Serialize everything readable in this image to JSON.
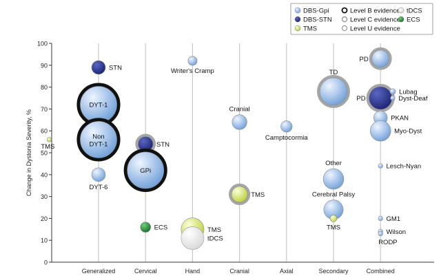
{
  "chart_data": {
    "type": "scatter",
    "ylabel": "Change in Dystonia Severity, %",
    "xlabel": "",
    "ylim": [
      0,
      100
    ],
    "yticks": [
      0,
      10,
      20,
      30,
      40,
      50,
      60,
      70,
      80,
      90,
      100
    ],
    "categories": [
      "Generalized",
      "Cervical",
      "Hand",
      "Cranial",
      "Axial",
      "Secondary",
      "Combined"
    ],
    "legend": {
      "placement": "top-right",
      "treatments": [
        {
          "key": "dbs-gpi",
          "label": "DBS-Gpi",
          "color": "#8fb6e3"
        },
        {
          "key": "dbs-stn",
          "label": "DBS-STN",
          "color": "#2e3a8c"
        },
        {
          "key": "tms",
          "label": "TMS",
          "color": "#d7e67a"
        },
        {
          "key": "tdcs",
          "label": "tDCS",
          "color": "#f4f4f4"
        },
        {
          "key": "ecs",
          "label": "ECS",
          "color": "#2e8b3e"
        }
      ],
      "evidence": [
        {
          "key": "B",
          "label": "Level B evidence"
        },
        {
          "key": "C",
          "label": "Level C evidence"
        },
        {
          "key": "U",
          "label": "Level U evidence"
        }
      ]
    },
    "points": [
      {
        "category": "Generalized",
        "y": 89,
        "treatment": "dbs-stn",
        "size": 1.2,
        "evidence": "U",
        "label": "STN",
        "label_pos": "right"
      },
      {
        "category": "Generalized",
        "y": 72,
        "treatment": "dbs-gpi",
        "size": 3.2,
        "evidence": "B",
        "label": "DYT-1",
        "label_pos": "inside"
      },
      {
        "category": "Generalized",
        "y": 56,
        "treatment": "dbs-gpi",
        "size": 3.2,
        "evidence": "B",
        "label": "Non DYT-1",
        "label_pos": "inside"
      },
      {
        "category": "Generalized",
        "y": 56,
        "treatment": "tms",
        "size": 0.4,
        "evidence": "U",
        "label": "TMS",
        "label_pos": "below-left",
        "dx": -1.05
      },
      {
        "category": "Generalized",
        "y": 40,
        "treatment": "dbs-gpi",
        "size": 1.2,
        "evidence": "U",
        "label": "DYT-6",
        "label_pos": "below"
      },
      {
        "category": "Cervical",
        "y": 54,
        "treatment": "dbs-stn",
        "size": 1.3,
        "evidence": "C",
        "label": "STN",
        "label_pos": "right"
      },
      {
        "category": "Cervical",
        "y": 42,
        "treatment": "dbs-gpi",
        "size": 3.2,
        "evidence": "B",
        "label": "GPi",
        "label_pos": "inside"
      },
      {
        "category": "Cervical",
        "y": 16,
        "treatment": "ecs",
        "size": 0.9,
        "evidence": "U",
        "label": "ECS",
        "label_pos": "right"
      },
      {
        "category": "Hand",
        "y": 92,
        "treatment": "dbs-gpi",
        "size": 0.8,
        "evidence": "U",
        "label": "Writer's Cramp",
        "label_pos": "below"
      },
      {
        "category": "Hand",
        "y": 15,
        "treatment": "tms",
        "size": 2.0,
        "evidence": "U",
        "label": "TMS",
        "label_pos": "right"
      },
      {
        "category": "Hand",
        "y": 11,
        "treatment": "tdcs",
        "size": 2.0,
        "evidence": "U",
        "label": "tDCS",
        "label_pos": "right"
      },
      {
        "category": "Cranial",
        "y": 64,
        "treatment": "dbs-gpi",
        "size": 1.3,
        "evidence": "U",
        "label": "Cranial",
        "label_pos": "above"
      },
      {
        "category": "Cranial",
        "y": 31,
        "treatment": "tms",
        "size": 1.4,
        "evidence": "C",
        "label": "TMS",
        "label_pos": "right"
      },
      {
        "category": "Axial",
        "y": 62,
        "treatment": "dbs-gpi",
        "size": 1.0,
        "evidence": "U",
        "label": "Camptocormia",
        "label_pos": "below"
      },
      {
        "category": "Secondary",
        "y": 78,
        "treatment": "dbs-gpi",
        "size": 2.4,
        "evidence": "C",
        "label": "TD",
        "label_pos": "above"
      },
      {
        "category": "Secondary",
        "y": 38,
        "treatment": "dbs-gpi",
        "size": 1.8,
        "evidence": "U",
        "label": "Other",
        "label_pos": "above"
      },
      {
        "category": "Secondary",
        "y": 24,
        "treatment": "dbs-gpi",
        "size": 1.7,
        "evidence": "U",
        "label": "Cerebral Palsy",
        "label_pos": "above"
      },
      {
        "category": "Secondary",
        "y": 20,
        "treatment": "tms",
        "size": 0.6,
        "evidence": "U",
        "label": "TMS",
        "label_pos": "below"
      },
      {
        "category": "Combined",
        "y": 93,
        "treatment": "dbs-gpi",
        "size": 1.5,
        "evidence": "C",
        "label": "PD",
        "label_pos": "left"
      },
      {
        "category": "Combined",
        "y": 75,
        "treatment": "dbs-stn",
        "size": 2.0,
        "evidence": "C",
        "label": "PD",
        "label_pos": "left"
      },
      {
        "category": "Combined",
        "y": 78,
        "treatment": "dbs-gpi",
        "size": 0.5,
        "evidence": "U",
        "label": "Lubag",
        "label_pos": "right",
        "dx": 0.26
      },
      {
        "category": "Combined",
        "y": 75,
        "treatment": "dbs-gpi",
        "size": 0.4,
        "evidence": "U",
        "label": "Dyst-Deaf",
        "label_pos": "right",
        "dx": 0.26
      },
      {
        "category": "Combined",
        "y": 66,
        "treatment": "dbs-gpi",
        "size": 1.2,
        "evidence": "U",
        "label": "PKAN",
        "label_pos": "right"
      },
      {
        "category": "Combined",
        "y": 60,
        "treatment": "dbs-gpi",
        "size": 1.8,
        "evidence": "U",
        "label": "Myo-Dyst",
        "label_pos": "right"
      },
      {
        "category": "Combined",
        "y": 44,
        "treatment": "dbs-gpi",
        "size": 0.4,
        "evidence": "U",
        "label": "Lesch-Nyan",
        "label_pos": "right"
      },
      {
        "category": "Combined",
        "y": 20,
        "treatment": "dbs-gpi",
        "size": 0.4,
        "evidence": "U",
        "label": "GM1",
        "label_pos": "right"
      },
      {
        "category": "Combined",
        "y": 14,
        "treatment": "dbs-gpi",
        "size": 0.4,
        "evidence": "U",
        "label": "Wilson",
        "label_pos": "right"
      },
      {
        "category": "Combined",
        "y": 13,
        "treatment": "dbs-gpi",
        "size": 0.4,
        "evidence": "U",
        "label": "RODP",
        "label_pos": "below-right"
      }
    ]
  }
}
